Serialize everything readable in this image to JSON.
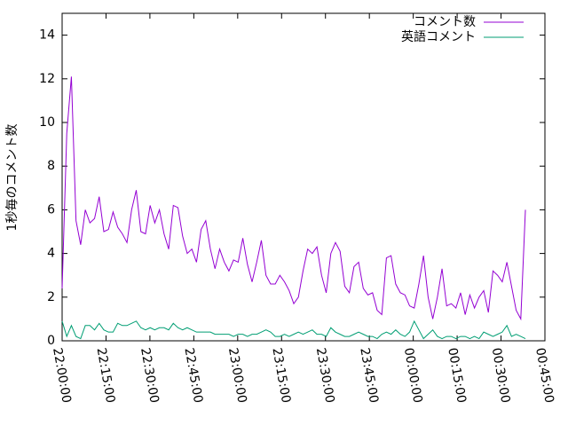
{
  "chart_data": {
    "type": "line",
    "y_label": "1秒毎のコメント数",
    "x": [
      "22:00:00",
      "22:01:35",
      "22:03:10",
      "22:04:45",
      "22:06:20",
      "22:07:55",
      "22:09:30",
      "22:11:05",
      "22:12:40",
      "22:14:15",
      "22:15:50",
      "22:17:25",
      "22:19:00",
      "22:20:35",
      "22:22:10",
      "22:23:45",
      "22:25:20",
      "22:26:55",
      "22:28:30",
      "22:30:05",
      "22:31:40",
      "22:33:15",
      "22:34:50",
      "22:36:25",
      "22:38:00",
      "22:39:35",
      "22:41:10",
      "22:42:45",
      "22:44:20",
      "22:45:55",
      "22:47:30",
      "22:49:05",
      "22:50:40",
      "22:52:15",
      "22:53:50",
      "22:55:25",
      "22:57:00",
      "22:58:35",
      "23:00:10",
      "23:01:45",
      "23:03:20",
      "23:04:55",
      "23:06:30",
      "23:08:05",
      "23:09:40",
      "23:11:15",
      "23:12:50",
      "23:14:25",
      "23:16:00",
      "23:17:35",
      "23:19:10",
      "23:20:45",
      "23:22:20",
      "23:23:55",
      "23:25:30",
      "23:27:05",
      "23:28:40",
      "23:30:15",
      "23:31:50",
      "23:33:25",
      "23:35:00",
      "23:36:35",
      "23:38:10",
      "23:39:45",
      "23:41:20",
      "23:42:55",
      "23:44:30",
      "23:46:05",
      "23:47:40",
      "23:49:15",
      "23:50:50",
      "23:52:25",
      "23:54:00",
      "23:55:35",
      "23:57:10",
      "23:58:45",
      "00:00:20",
      "00:01:55",
      "00:03:30",
      "00:05:05",
      "00:06:40",
      "00:08:15",
      "00:09:50",
      "00:11:25",
      "00:13:00",
      "00:14:35",
      "00:16:10",
      "00:17:45",
      "00:19:20",
      "00:20:55",
      "00:22:30",
      "00:24:05",
      "00:25:40",
      "00:27:15",
      "00:28:50",
      "00:30:25",
      "00:32:00",
      "00:33:35",
      "00:35:10",
      "00:36:45",
      "00:38:20"
    ],
    "series": [
      {
        "name": "コメント数",
        "color": "#9400d3",
        "values": [
          2.4,
          9.5,
          12.1,
          5.5,
          4.4,
          6.0,
          5.4,
          5.6,
          6.6,
          5.0,
          5.1,
          5.9,
          5.2,
          4.9,
          4.5,
          6.0,
          6.9,
          5.0,
          4.9,
          6.2,
          5.4,
          6.0,
          4.9,
          4.2,
          6.2,
          6.1,
          4.8,
          4.0,
          4.2,
          3.6,
          5.1,
          5.5,
          4.2,
          3.3,
          4.2,
          3.6,
          3.2,
          3.7,
          3.6,
          4.7,
          3.5,
          2.7,
          3.6,
          4.6,
          3.0,
          2.6,
          2.6,
          3.0,
          2.7,
          2.3,
          1.7,
          2.0,
          3.2,
          4.2,
          4.0,
          4.3,
          3.0,
          2.2,
          4.0,
          4.5,
          4.1,
          2.5,
          2.2,
          3.4,
          3.6,
          2.4,
          2.1,
          2.2,
          1.4,
          1.2,
          3.8,
          3.9,
          2.6,
          2.2,
          2.1,
          1.6,
          1.5,
          2.6,
          3.9,
          2.0,
          1.0,
          2.0,
          3.3,
          1.6,
          1.7,
          1.5,
          2.2,
          1.2,
          2.1,
          1.5,
          2.0,
          2.3,
          1.3,
          3.2,
          3.0,
          2.7,
          3.6,
          2.5,
          1.4,
          1.0,
          6.0
        ]
      },
      {
        "name": "英語コメント",
        "color": "#009e73",
        "values": [
          0.9,
          0.2,
          0.7,
          0.2,
          0.1,
          0.7,
          0.7,
          0.5,
          0.8,
          0.5,
          0.4,
          0.4,
          0.8,
          0.7,
          0.7,
          0.8,
          0.9,
          0.6,
          0.5,
          0.6,
          0.5,
          0.6,
          0.6,
          0.5,
          0.8,
          0.6,
          0.5,
          0.6,
          0.5,
          0.4,
          0.4,
          0.4,
          0.4,
          0.3,
          0.3,
          0.3,
          0.3,
          0.2,
          0.3,
          0.3,
          0.2,
          0.3,
          0.3,
          0.4,
          0.5,
          0.4,
          0.2,
          0.2,
          0.3,
          0.2,
          0.3,
          0.4,
          0.3,
          0.4,
          0.5,
          0.3,
          0.3,
          0.2,
          0.6,
          0.4,
          0.3,
          0.2,
          0.2,
          0.3,
          0.4,
          0.3,
          0.2,
          0.2,
          0.1,
          0.3,
          0.4,
          0.3,
          0.5,
          0.3,
          0.2,
          0.4,
          0.9,
          0.5,
          0.1,
          0.3,
          0.5,
          0.2,
          0.1,
          0.2,
          0.2,
          0.1,
          0.2,
          0.2,
          0.1,
          0.2,
          0.1,
          0.4,
          0.3,
          0.2,
          0.3,
          0.4,
          0.7,
          0.2,
          0.3,
          0.2,
          0.1
        ]
      }
    ],
    "xlim": [
      "22:00:00",
      "00:45:00"
    ],
    "xticks": [
      "22:00:00",
      "22:15:00",
      "22:30:00",
      "22:45:00",
      "23:00:00",
      "23:15:00",
      "23:30:00",
      "23:45:00",
      "00:00:00",
      "00:15:00",
      "00:30:00",
      "00:45:00"
    ],
    "ylim": [
      0,
      15
    ],
    "yticks": [
      0,
      2,
      4,
      6,
      8,
      10,
      12,
      14
    ],
    "legend": "top-right",
    "grid": false
  }
}
